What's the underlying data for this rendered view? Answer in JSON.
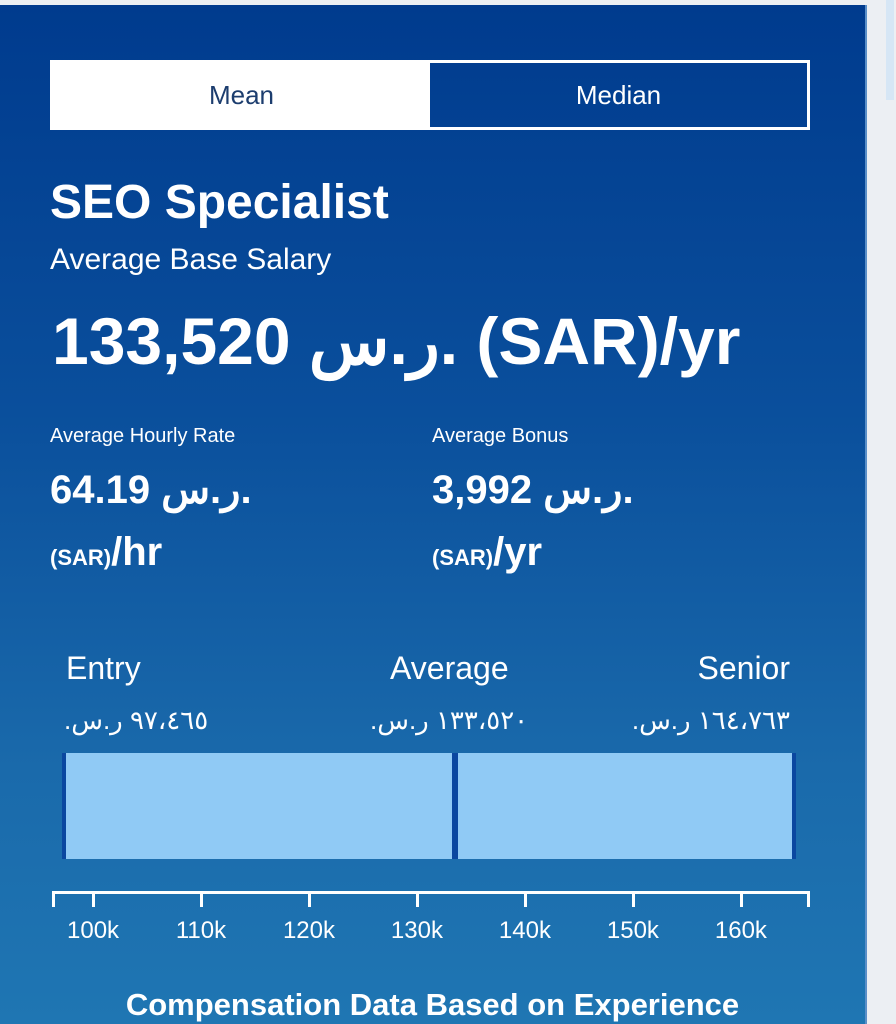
{
  "toggle": {
    "mean": "Mean",
    "median": "Median",
    "selected": "Mean"
  },
  "job_title": "SEO Specialist",
  "subtitle": "Average Base Salary",
  "base_salary": "133,520 ر.س. (SAR)/yr",
  "hourly": {
    "label": "Average Hourly Rate",
    "value": "64.19 ر.س.",
    "unit_code": "(SAR)",
    "unit_period": "/hr"
  },
  "bonus": {
    "label": "Average Bonus",
    "value": "3,992 ر.س.",
    "unit_code": "(SAR)",
    "unit_period": "/yr"
  },
  "levels": {
    "entry": {
      "label": "Entry",
      "value": "٩٧،٤٦٥ ر.س."
    },
    "average": {
      "label": "Average",
      "value": "١٣٣،٥٢٠ ر.س."
    },
    "senior": {
      "label": "Senior",
      "value": "١٦٤،٧٦٣ ر.س."
    }
  },
  "range_chart": {
    "entry": 97465,
    "average": 133520,
    "senior": 164763,
    "axis_min": 96200,
    "axis_max": 166400,
    "ticks": [
      {
        "v": 100000,
        "label": "100k"
      },
      {
        "v": 110000,
        "label": "110k"
      },
      {
        "v": 120000,
        "label": "120k"
      },
      {
        "v": 130000,
        "label": "130k"
      },
      {
        "v": 140000,
        "label": "140k"
      },
      {
        "v": 150000,
        "label": "150k"
      },
      {
        "v": 160000,
        "label": "160k"
      }
    ],
    "bar_color": "#90caf5"
  },
  "footer": "Compensation Data Based on Experience"
}
